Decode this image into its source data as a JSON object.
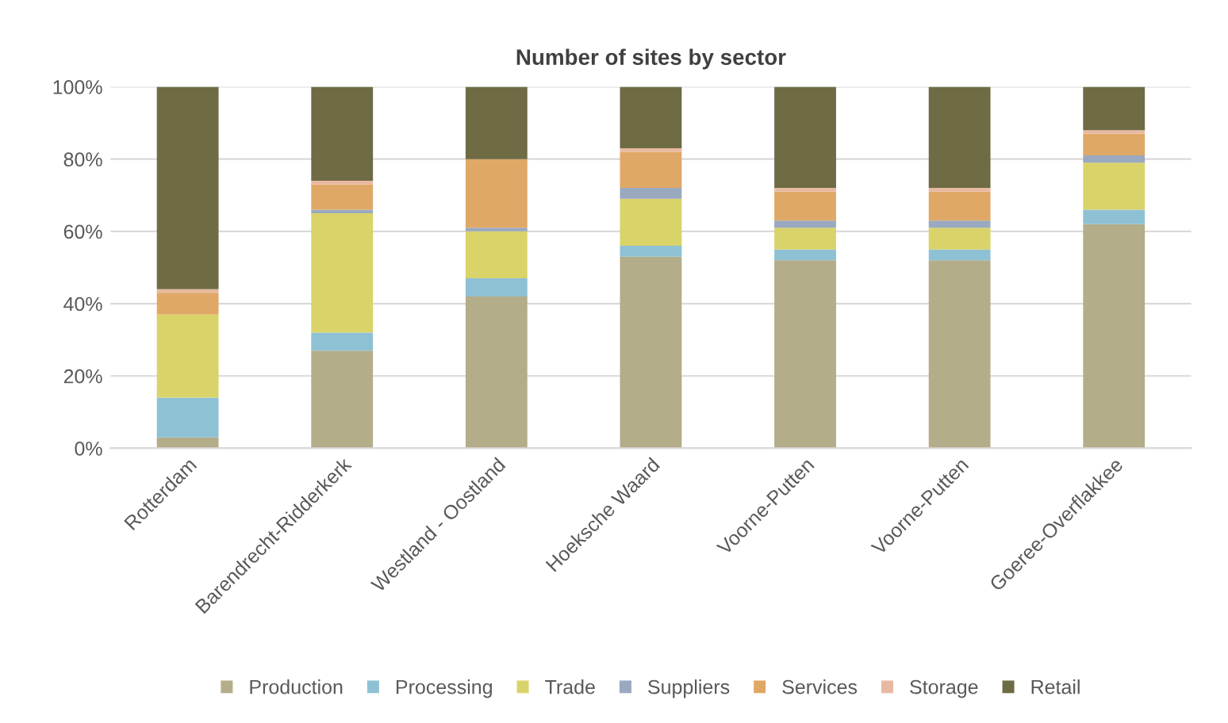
{
  "chart_data": {
    "type": "bar",
    "title": "Number of sites by sector",
    "stacked": true,
    "categories": [
      "Rotterdam",
      "Barendrecht-Ridderkerk",
      "Westland - Oostland",
      "Hoeksche Waard",
      "Voorne-Putten",
      "Voorne-Putten",
      "Goeree-Overflakkee"
    ],
    "series": [
      {
        "name": "Production",
        "color": "#b3ad8a",
        "values": [
          3,
          27,
          42,
          53,
          52,
          52,
          62
        ]
      },
      {
        "name": "Processing",
        "color": "#8fc1d4",
        "values": [
          11,
          5,
          5,
          3,
          3,
          3,
          4
        ]
      },
      {
        "name": "Trade",
        "color": "#d9d36a",
        "values": [
          23,
          33,
          13,
          13,
          6,
          6,
          13
        ]
      },
      {
        "name": "Suppliers",
        "color": "#9aa9c0",
        "values": [
          0,
          1,
          1,
          3,
          2,
          2,
          2
        ]
      },
      {
        "name": "Services",
        "color": "#e0a866",
        "values": [
          6,
          7,
          19,
          10,
          8,
          8,
          6
        ]
      },
      {
        "name": "Storage",
        "color": "#e8b9a0",
        "values": [
          1,
          1,
          0,
          1,
          1,
          1,
          1
        ]
      },
      {
        "name": "Retail",
        "color": "#6e6b45",
        "values": [
          56,
          26,
          20,
          17,
          28,
          28,
          12
        ]
      }
    ],
    "ylim": [
      0,
      100
    ],
    "yticks": [
      {
        "value": 0,
        "label": "0%"
      },
      {
        "value": 20,
        "label": "20%"
      },
      {
        "value": 40,
        "label": "40%"
      },
      {
        "value": 60,
        "label": "60%"
      },
      {
        "value": 80,
        "label": "80%"
      },
      {
        "value": 100,
        "label": "100%"
      }
    ],
    "grid": "y",
    "legend": "bottom"
  }
}
